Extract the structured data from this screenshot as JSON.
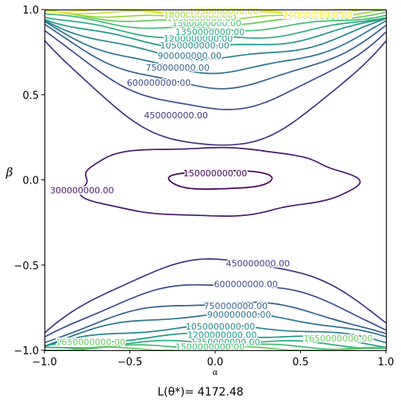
{
  "chart_data": {
    "type": "contour",
    "xlabel": "α",
    "ylabel": "β",
    "xlim": [
      -1.0,
      1.0
    ],
    "ylim": [
      -1.0,
      1.0
    ],
    "x_ticks": [
      "−1.0",
      "−0.5",
      "0.0",
      "0.5",
      "1.0"
    ],
    "y_ticks": [
      "−1.0",
      "−0.5",
      "0.0",
      "0.5",
      "1.0"
    ],
    "grid": false,
    "colormap": "viridis",
    "levels": [
      150000000,
      300000000,
      450000000,
      600000000,
      750000000,
      900000000,
      1050000000,
      1200000000,
      1350000000,
      1500000000,
      1650000000,
      1800000000,
      1950000000,
      2100000000
    ],
    "contour_labels": [
      {
        "text": "150000000.00",
        "x": 0.0,
        "y": 0.04,
        "level": 150000000
      },
      {
        "text": "300000000.00",
        "x": -0.78,
        "y": -0.06,
        "level": 300000000
      },
      {
        "text": "450000000.00",
        "x": -0.23,
        "y": 0.38,
        "level": 450000000
      },
      {
        "text": "450000000.00",
        "x": 0.25,
        "y": -0.49,
        "level": 450000000
      },
      {
        "text": "600000000.00",
        "x": -0.33,
        "y": 0.57,
        "level": 600000000
      },
      {
        "text": "600000000.00",
        "x": 0.18,
        "y": -0.61,
        "level": 600000000
      },
      {
        "text": "750000000.00",
        "x": -0.22,
        "y": 0.66,
        "level": 750000000
      },
      {
        "text": "750000000.00",
        "x": 0.12,
        "y": -0.74,
        "level": 750000000
      },
      {
        "text": "900000000.00",
        "x": -0.15,
        "y": 0.73,
        "level": 900000000
      },
      {
        "text": "900000000.00",
        "x": 0.14,
        "y": -0.79,
        "level": 900000000
      },
      {
        "text": "1050000000.00",
        "x": -0.12,
        "y": 0.79,
        "level": 1050000000
      },
      {
        "text": "1050000000.00",
        "x": 0.03,
        "y": -0.86,
        "level": 1050000000
      },
      {
        "text": "1200000000.00",
        "x": -0.1,
        "y": 0.83,
        "level": 1200000000
      },
      {
        "text": "1200000000.00",
        "x": 0.04,
        "y": -0.91,
        "level": 1200000000
      },
      {
        "text": "1350000000.00",
        "x": -0.03,
        "y": 0.87,
        "level": 1350000000
      },
      {
        "text": "1350000000.00",
        "x": 0.06,
        "y": -0.95,
        "level": 1350000000
      },
      {
        "text": "1500000000.00",
        "x": -0.05,
        "y": 0.92,
        "level": 1500000000
      },
      {
        "text": "1500000000.00",
        "x": -0.03,
        "y": -0.98,
        "level": 1500000000
      },
      {
        "text": "1650000000.00",
        "x": -0.08,
        "y": 0.95,
        "level": 1650000000
      },
      {
        "text": "1650000000.00",
        "x": -0.73,
        "y": -0.95,
        "level": 1650000000
      },
      {
        "text": "1650000000.00",
        "x": 0.72,
        "y": -0.93,
        "level": 1650000000
      },
      {
        "text": "1800000000.00",
        "x": -0.1,
        "y": 0.97,
        "level": 1800000000
      },
      {
        "text": "1950000000.00",
        "x": 0.05,
        "y": 0.99,
        "level": 1950000000
      },
      {
        "text": "2100000000.00",
        "x": 0.6,
        "y": 0.97,
        "level": 2100000000
      }
    ]
  },
  "footer": {
    "text": "L(θ*)= 4172.48"
  }
}
